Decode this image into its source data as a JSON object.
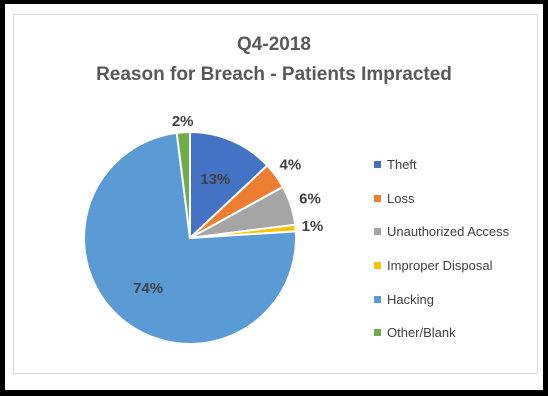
{
  "chart_data": {
    "type": "pie",
    "title": "Q4-2018",
    "subtitle": "Reason for Breach - Patients Impracted",
    "legend_position": "right",
    "slices": [
      {
        "label": "Theft",
        "value": 13,
        "display": "13%",
        "color": "#4472C4"
      },
      {
        "label": "Loss",
        "value": 4,
        "display": "4%",
        "color": "#ED7D31"
      },
      {
        "label": "Unauthorized Access",
        "value": 6,
        "display": "6%",
        "color": "#A5A5A5"
      },
      {
        "label": "Improper Disposal",
        "value": 1,
        "display": "1%",
        "color": "#FFC000"
      },
      {
        "label": "Hacking",
        "value": 74,
        "display": "74%",
        "color": "#5B9BD5"
      },
      {
        "label": "Other/Blank",
        "value": 2,
        "display": "2%",
        "color": "#70AD47"
      }
    ]
  }
}
